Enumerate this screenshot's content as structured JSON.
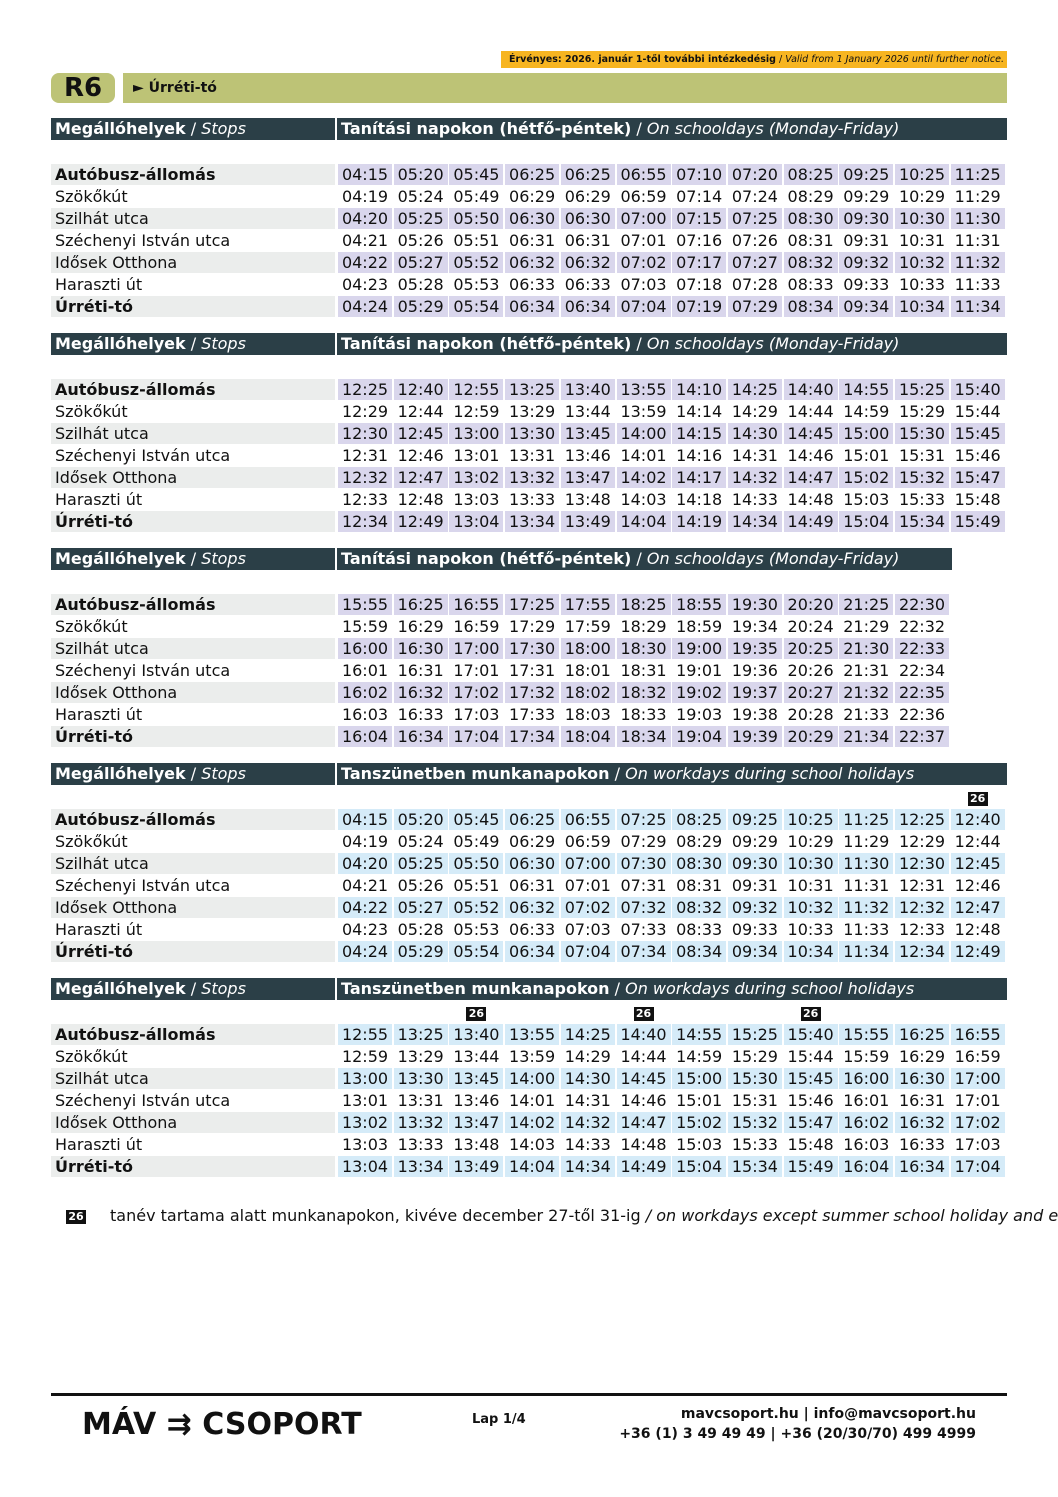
{
  "validity": {
    "hu": "Érvényes: 2026. január 1-től további intézkedésig",
    "en": "Valid from 1 January 2026 until further notice."
  },
  "route": {
    "number": "R6",
    "destination": "► Úrréti-tó"
  },
  "colors": {
    "route_bg": "#bdc376",
    "header_bg": "#2b3f47",
    "validity_bg": "#f7b521",
    "schoolday_cell": "#d9d6ec",
    "holiday_cell": "#d5ebf8"
  },
  "stops": [
    "Autóbusz-állomás",
    "Szökőkút",
    "Szilhát utca",
    "Széchenyi István utca",
    "Idősek Otthona",
    "Haraszti út",
    "Úrréti-tó"
  ],
  "stops_header": {
    "hu": "Megállóhelyek",
    "en": "Stops"
  },
  "blocks": [
    {
      "hu": "Tanítási napokon (hétfő-péntek)",
      "en": "On schooldays (Monday-Friday)",
      "type": "school",
      "markers": [],
      "times": [
        [
          "04:15",
          "05:20",
          "05:45",
          "06:25",
          "06:25",
          "06:55",
          "07:10",
          "07:20",
          "08:25",
          "09:25",
          "10:25",
          "11:25"
        ],
        [
          "04:19",
          "05:24",
          "05:49",
          "06:29",
          "06:29",
          "06:59",
          "07:14",
          "07:24",
          "08:29",
          "09:29",
          "10:29",
          "11:29"
        ],
        [
          "04:20",
          "05:25",
          "05:50",
          "06:30",
          "06:30",
          "07:00",
          "07:15",
          "07:25",
          "08:30",
          "09:30",
          "10:30",
          "11:30"
        ],
        [
          "04:21",
          "05:26",
          "05:51",
          "06:31",
          "06:31",
          "07:01",
          "07:16",
          "07:26",
          "08:31",
          "09:31",
          "10:31",
          "11:31"
        ],
        [
          "04:22",
          "05:27",
          "05:52",
          "06:32",
          "06:32",
          "07:02",
          "07:17",
          "07:27",
          "08:32",
          "09:32",
          "10:32",
          "11:32"
        ],
        [
          "04:23",
          "05:28",
          "05:53",
          "06:33",
          "06:33",
          "07:03",
          "07:18",
          "07:28",
          "08:33",
          "09:33",
          "10:33",
          "11:33"
        ],
        [
          "04:24",
          "05:29",
          "05:54",
          "06:34",
          "06:34",
          "07:04",
          "07:19",
          "07:29",
          "08:34",
          "09:34",
          "10:34",
          "11:34"
        ]
      ]
    },
    {
      "hu": "Tanítási napokon (hétfő-péntek)",
      "en": "On schooldays (Monday-Friday)",
      "type": "school",
      "markers": [],
      "times": [
        [
          "12:25",
          "12:40",
          "12:55",
          "13:25",
          "13:40",
          "13:55",
          "14:10",
          "14:25",
          "14:40",
          "14:55",
          "15:25",
          "15:40"
        ],
        [
          "12:29",
          "12:44",
          "12:59",
          "13:29",
          "13:44",
          "13:59",
          "14:14",
          "14:29",
          "14:44",
          "14:59",
          "15:29",
          "15:44"
        ],
        [
          "12:30",
          "12:45",
          "13:00",
          "13:30",
          "13:45",
          "14:00",
          "14:15",
          "14:30",
          "14:45",
          "15:00",
          "15:30",
          "15:45"
        ],
        [
          "12:31",
          "12:46",
          "13:01",
          "13:31",
          "13:46",
          "14:01",
          "14:16",
          "14:31",
          "14:46",
          "15:01",
          "15:31",
          "15:46"
        ],
        [
          "12:32",
          "12:47",
          "13:02",
          "13:32",
          "13:47",
          "14:02",
          "14:17",
          "14:32",
          "14:47",
          "15:02",
          "15:32",
          "15:47"
        ],
        [
          "12:33",
          "12:48",
          "13:03",
          "13:33",
          "13:48",
          "14:03",
          "14:18",
          "14:33",
          "14:48",
          "15:03",
          "15:33",
          "15:48"
        ],
        [
          "12:34",
          "12:49",
          "13:04",
          "13:34",
          "13:49",
          "14:04",
          "14:19",
          "14:34",
          "14:49",
          "15:04",
          "15:34",
          "15:49"
        ]
      ]
    },
    {
      "hu": "Tanítási napokon (hétfő-péntek)",
      "en": "On schooldays (Monday-Friday)",
      "type": "school",
      "markers": [],
      "times": [
        [
          "15:55",
          "16:25",
          "16:55",
          "17:25",
          "17:55",
          "18:25",
          "18:55",
          "19:30",
          "20:20",
          "21:25",
          "22:30"
        ],
        [
          "15:59",
          "16:29",
          "16:59",
          "17:29",
          "17:59",
          "18:29",
          "18:59",
          "19:34",
          "20:24",
          "21:29",
          "22:32"
        ],
        [
          "16:00",
          "16:30",
          "17:00",
          "17:30",
          "18:00",
          "18:30",
          "19:00",
          "19:35",
          "20:25",
          "21:30",
          "22:33"
        ],
        [
          "16:01",
          "16:31",
          "17:01",
          "17:31",
          "18:01",
          "18:31",
          "19:01",
          "19:36",
          "20:26",
          "21:31",
          "22:34"
        ],
        [
          "16:02",
          "16:32",
          "17:02",
          "17:32",
          "18:02",
          "18:32",
          "19:02",
          "19:37",
          "20:27",
          "21:32",
          "22:35"
        ],
        [
          "16:03",
          "16:33",
          "17:03",
          "17:33",
          "18:03",
          "18:33",
          "19:03",
          "19:38",
          "20:28",
          "21:33",
          "22:36"
        ],
        [
          "16:04",
          "16:34",
          "17:04",
          "17:34",
          "18:04",
          "18:34",
          "19:04",
          "19:39",
          "20:29",
          "21:34",
          "22:37"
        ]
      ]
    },
    {
      "hu": "Tanszünetben munkanapokon",
      "en": "On workdays during school holidays",
      "type": "holiday",
      "markers": [
        {
          "col": 11,
          "label": "26"
        }
      ],
      "times": [
        [
          "04:15",
          "05:20",
          "05:45",
          "06:25",
          "06:55",
          "07:25",
          "08:25",
          "09:25",
          "10:25",
          "11:25",
          "12:25",
          "12:40"
        ],
        [
          "04:19",
          "05:24",
          "05:49",
          "06:29",
          "06:59",
          "07:29",
          "08:29",
          "09:29",
          "10:29",
          "11:29",
          "12:29",
          "12:44"
        ],
        [
          "04:20",
          "05:25",
          "05:50",
          "06:30",
          "07:00",
          "07:30",
          "08:30",
          "09:30",
          "10:30",
          "11:30",
          "12:30",
          "12:45"
        ],
        [
          "04:21",
          "05:26",
          "05:51",
          "06:31",
          "07:01",
          "07:31",
          "08:31",
          "09:31",
          "10:31",
          "11:31",
          "12:31",
          "12:46"
        ],
        [
          "04:22",
          "05:27",
          "05:52",
          "06:32",
          "07:02",
          "07:32",
          "08:32",
          "09:32",
          "10:32",
          "11:32",
          "12:32",
          "12:47"
        ],
        [
          "04:23",
          "05:28",
          "05:53",
          "06:33",
          "07:03",
          "07:33",
          "08:33",
          "09:33",
          "10:33",
          "11:33",
          "12:33",
          "12:48"
        ],
        [
          "04:24",
          "05:29",
          "05:54",
          "06:34",
          "07:04",
          "07:34",
          "08:34",
          "09:34",
          "10:34",
          "11:34",
          "12:34",
          "12:49"
        ]
      ]
    },
    {
      "hu": "Tanszünetben munkanapokon",
      "en": "On workdays during school holidays",
      "type": "holiday",
      "markers": [
        {
          "col": 2,
          "label": "26"
        },
        {
          "col": 5,
          "label": "26"
        },
        {
          "col": 8,
          "label": "26"
        }
      ],
      "times": [
        [
          "12:55",
          "13:25",
          "13:40",
          "13:55",
          "14:25",
          "14:40",
          "14:55",
          "15:25",
          "15:40",
          "15:55",
          "16:25",
          "16:55"
        ],
        [
          "12:59",
          "13:29",
          "13:44",
          "13:59",
          "14:29",
          "14:44",
          "14:59",
          "15:29",
          "15:44",
          "15:59",
          "16:29",
          "16:59"
        ],
        [
          "13:00",
          "13:30",
          "13:45",
          "14:00",
          "14:30",
          "14:45",
          "15:00",
          "15:30",
          "15:45",
          "16:00",
          "16:30",
          "17:00"
        ],
        [
          "13:01",
          "13:31",
          "13:46",
          "14:01",
          "14:31",
          "14:46",
          "15:01",
          "15:31",
          "15:46",
          "16:01",
          "16:31",
          "17:01"
        ],
        [
          "13:02",
          "13:32",
          "13:47",
          "14:02",
          "14:32",
          "14:47",
          "15:02",
          "15:32",
          "15:47",
          "16:02",
          "16:32",
          "17:02"
        ],
        [
          "13:03",
          "13:33",
          "13:48",
          "14:03",
          "14:33",
          "14:48",
          "15:03",
          "15:33",
          "15:48",
          "16:03",
          "16:33",
          "17:03"
        ],
        [
          "13:04",
          "13:34",
          "13:49",
          "14:04",
          "14:34",
          "14:49",
          "15:04",
          "15:34",
          "15:49",
          "16:04",
          "16:34",
          "17:04"
        ]
      ]
    }
  ],
  "footnote": {
    "marker": "26",
    "hu": "tanév tartama alatt munkanapokon, kivéve december 27-től 31-ig",
    "en": "/ on workdays except summer school holiday and e"
  },
  "footer": {
    "logo": "MÁV ⇉ CSOPORT",
    "page": "Lap 1/4",
    "contact_line1": "mavcsoport.hu | info@mavcsoport.hu",
    "contact_line2": "+36 (1) 3 49 49 49 | +36 (20/30/70) 499 4999"
  }
}
